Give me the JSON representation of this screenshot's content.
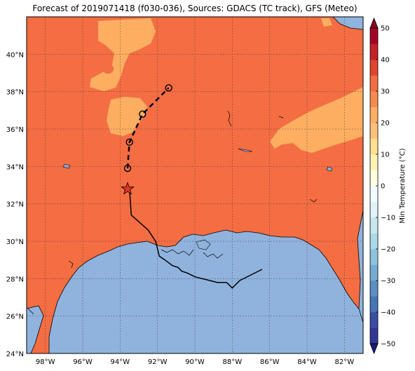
{
  "title": "Forecast of 2019071418 (f030-036), Sources: GDACS (TC track), GFS (Meteo)",
  "map": {
    "lon_range": [
      -99,
      -81
    ],
    "lat_range": [
      24,
      42
    ],
    "lon_ticks": [
      {
        "value": -98,
        "label": "98°W"
      },
      {
        "value": -96,
        "label": "96°W"
      },
      {
        "value": -94,
        "label": "94°W"
      },
      {
        "value": -92,
        "label": "92°W"
      },
      {
        "value": -90,
        "label": "90°W"
      },
      {
        "value": -88,
        "label": "88°W"
      },
      {
        "value": -86,
        "label": "86°W"
      },
      {
        "value": -84,
        "label": "84°W"
      },
      {
        "value": -82,
        "label": "82°W"
      }
    ],
    "lat_ticks": [
      {
        "value": 24,
        "label": "24°N"
      },
      {
        "value": 26,
        "label": "26°N"
      },
      {
        "value": 28,
        "label": "28°N"
      },
      {
        "value": 30,
        "label": "30°N"
      },
      {
        "value": 32,
        "label": "32°N"
      },
      {
        "value": 34,
        "label": "34°N"
      },
      {
        "value": 36,
        "label": "36°N"
      },
      {
        "value": 38,
        "label": "38°N"
      },
      {
        "value": 40,
        "label": "40°N"
      }
    ],
    "colors": {
      "land_temp_20_30": "#f46d43",
      "land_temp_10_20": "#fdae61",
      "water": "#8fb3dd",
      "coastline": "#000000",
      "track": "#000000",
      "star": "#e03525"
    },
    "past_track": [
      [
        -93.5,
        32.8
      ],
      [
        -93.4,
        31.4
      ],
      [
        -92.5,
        30.6
      ],
      [
        -92.1,
        30.0
      ],
      [
        -91.9,
        29.2
      ],
      [
        -91.6,
        29.0
      ],
      [
        -91.2,
        28.7
      ],
      [
        -90.9,
        28.6
      ],
      [
        -90.7,
        28.4
      ],
      [
        -90.4,
        28.3
      ],
      [
        -90.0,
        28.1
      ],
      [
        -89.2,
        27.9
      ],
      [
        -88.8,
        27.8
      ],
      [
        -88.3,
        27.8
      ],
      [
        -88.0,
        27.5
      ],
      [
        -87.6,
        27.9
      ],
      [
        -87.0,
        28.2
      ],
      [
        -86.4,
        28.5
      ]
    ],
    "forecast_track": [
      [
        -93.6,
        33.9
      ],
      [
        -93.5,
        35.3
      ],
      [
        -92.8,
        36.8
      ],
      [
        -91.4,
        38.2
      ]
    ],
    "forecast_points": [
      [
        -93.6,
        33.9
      ],
      [
        -93.5,
        35.3
      ],
      [
        -92.8,
        36.8
      ],
      [
        -91.4,
        38.2
      ]
    ],
    "current_position": [
      -93.6,
      32.8
    ]
  },
  "colorbar": {
    "label": "Min Temperature (°C)",
    "min": -50,
    "max": 50,
    "ticks": [
      {
        "value": 50,
        "label": "50"
      },
      {
        "value": 40,
        "label": "40"
      },
      {
        "value": 30,
        "label": "30"
      },
      {
        "value": 20,
        "label": "20"
      },
      {
        "value": 10,
        "label": "10"
      },
      {
        "value": 0,
        "label": "0"
      },
      {
        "value": -10,
        "label": "−10"
      },
      {
        "value": -20,
        "label": "−20"
      },
      {
        "value": -30,
        "label": "−30"
      },
      {
        "value": -40,
        "label": "−40"
      },
      {
        "value": -50,
        "label": "−50"
      }
    ],
    "bands": [
      {
        "from": -50,
        "to": -45,
        "color": "#313695"
      },
      {
        "from": -45,
        "to": -40,
        "color": "#3a4ea3"
      },
      {
        "from": -40,
        "to": -35,
        "color": "#4575b4"
      },
      {
        "from": -35,
        "to": -30,
        "color": "#5a8fc3"
      },
      {
        "from": -30,
        "to": -25,
        "color": "#74add1"
      },
      {
        "from": -25,
        "to": -20,
        "color": "#8fc3dd"
      },
      {
        "from": -20,
        "to": -15,
        "color": "#abd9e9"
      },
      {
        "from": -15,
        "to": -10,
        "color": "#c6e6f0"
      },
      {
        "from": -10,
        "to": -5,
        "color": "#e0f3f8"
      },
      {
        "from": -5,
        "to": 0,
        "color": "#f2fafc"
      },
      {
        "from": 0,
        "to": 5,
        "color": "#ffffe0"
      },
      {
        "from": 5,
        "to": 10,
        "color": "#fff2b5"
      },
      {
        "from": 10,
        "to": 15,
        "color": "#fee090"
      },
      {
        "from": 15,
        "to": 20,
        "color": "#fdc07a"
      },
      {
        "from": 20,
        "to": 25,
        "color": "#fdae61"
      },
      {
        "from": 25,
        "to": 30,
        "color": "#f68a4e"
      },
      {
        "from": 30,
        "to": 35,
        "color": "#f46d43"
      },
      {
        "from": 35,
        "to": 40,
        "color": "#e0452f"
      },
      {
        "from": 40,
        "to": 45,
        "color": "#c52128"
      },
      {
        "from": 45,
        "to": 50,
        "color": "#a50026"
      }
    ],
    "under_color": "#1a1a7a",
    "over_color": "#8b0020"
  }
}
